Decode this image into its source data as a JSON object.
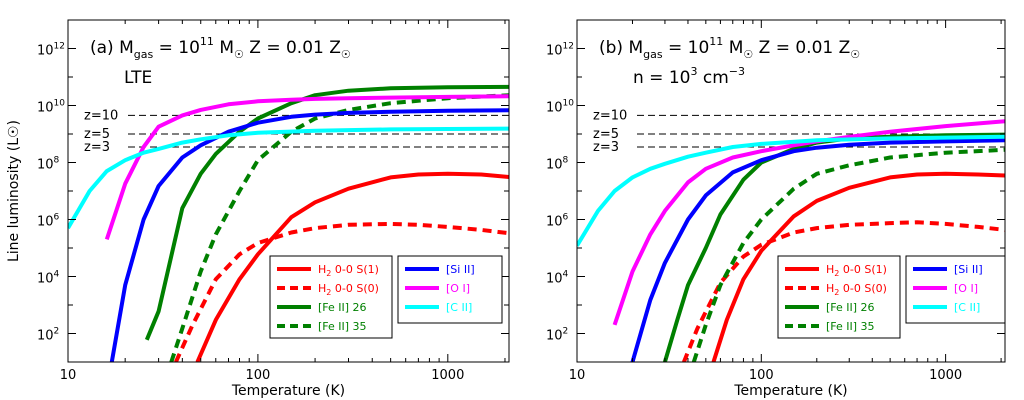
{
  "chart_data": [
    {
      "type": "line",
      "panel_label": "(a)",
      "title_lines": [
        {
          "pre": "(a) M",
          "sub": "gas",
          "mid": " = 10",
          "sup": "11",
          "post": " M",
          "sym": "☉",
          "z": "  Z = 0.01 Z",
          "zsym": "☉"
        },
        {
          "text": "LTE"
        }
      ],
      "xlabel": "Temperature (K)",
      "ylabel": "Line luminosity (L☉)",
      "xscale": "log",
      "yscale": "log",
      "xlim": [
        10,
        2100
      ],
      "ylim": [
        10,
        10000000000000.0
      ],
      "xticks": [
        {
          "v": 10,
          "label": "10"
        },
        {
          "v": 100,
          "label": "100"
        },
        {
          "v": 1000,
          "label": "1000"
        }
      ],
      "yticks": [
        {
          "v": 100,
          "base": "10",
          "exp": "2"
        },
        {
          "v": 10000,
          "base": "10",
          "exp": "4"
        },
        {
          "v": 1000000,
          "base": "10",
          "exp": "6"
        },
        {
          "v": 100000000,
          "base": "10",
          "exp": "8"
        },
        {
          "v": 10000000000,
          "base": "10",
          "exp": "10"
        },
        {
          "v": 1000000000000,
          "base": "10",
          "exp": "12"
        }
      ],
      "hlines": [
        {
          "label": "z=10",
          "y": 4500000000.0
        },
        {
          "label": "z=5",
          "y": 1000000000.0
        },
        {
          "label": "z=3",
          "y": 350000000.0
        }
      ],
      "series": [
        {
          "name": "H2 0-0 S(1)",
          "color": "#ff0000",
          "dash": false,
          "x": [
            48,
            60,
            80,
            100,
            150,
            200,
            300,
            500,
            700,
            1000,
            1500,
            2100
          ],
          "y": [
            10,
            300,
            8000,
            60000,
            1200000.0,
            4000000.0,
            12000000.0,
            30000000.0,
            38000000.0,
            40000000.0,
            38000000.0,
            31000000.0
          ]
        },
        {
          "name": "H2 0-0 S(0)",
          "color": "#ff0000",
          "dash": true,
          "x": [
            37,
            45,
            60,
            80,
            100,
            150,
            200,
            300,
            500,
            700,
            1000,
            1500,
            2100
          ],
          "y": [
            10,
            180,
            8000,
            60000,
            150000,
            350000,
            500000,
            650000,
            700000,
            650000,
            550000,
            430000,
            330000
          ]
        },
        {
          "name": "[Fe II] 26",
          "color": "#008000",
          "dash": false,
          "x": [
            26,
            30,
            40,
            50,
            60,
            80,
            100,
            150,
            200,
            300,
            500,
            1000,
            2100
          ],
          "y": [
            60,
            600,
            2500000.0,
            40000000.0,
            200000000.0,
            1200000000.0,
            3500000000.0,
            12000000000.0,
            23000000000.0,
            33000000000.0,
            40000000000.0,
            44000000000.0,
            45000000000.0
          ]
        },
        {
          "name": "[Fe II] 35",
          "color": "#008000",
          "dash": true,
          "x": [
            35,
            40,
            50,
            60,
            80,
            100,
            150,
            200,
            300,
            500,
            1000,
            2100
          ],
          "y": [
            10,
            150,
            15000,
            300000,
            10000000.0,
            120000000.0,
            1200000000.0,
            3500000000.0,
            7000000000.0,
            12000000000.0,
            18000000000.0,
            23000000000.0
          ]
        },
        {
          "name": "[Si II]",
          "color": "#0000ff",
          "dash": false,
          "x": [
            17,
            20,
            25,
            30,
            40,
            50,
            70,
            100,
            150,
            200,
            300,
            500,
            1000,
            2100
          ],
          "y": [
            10,
            5000,
            1000000.0,
            15000000.0,
            150000000.0,
            400000000.0,
            1200000000.0,
            2500000000.0,
            4000000000.0,
            4800000000.0,
            5500000000.0,
            6000000000.0,
            6500000000.0,
            6800000000.0
          ]
        },
        {
          "name": "[O I]",
          "color": "#ff00ff",
          "dash": false,
          "x": [
            16,
            20,
            25,
            30,
            40,
            50,
            70,
            100,
            150,
            200,
            300,
            500,
            1000,
            2100
          ],
          "y": [
            200000,
            18000000.0,
            350000000.0,
            1800000000.0,
            4500000000.0,
            7000000000.0,
            11000000000.0,
            14000000000.0,
            16000000000.0,
            17000000000.0,
            18000000000.0,
            19000000000.0,
            20000000000.0,
            21000000000.0
          ]
        },
        {
          "name": "[C II]",
          "color": "#00ffff",
          "dash": false,
          "x": [
            10,
            13,
            16,
            20,
            25,
            30,
            40,
            50,
            70,
            100,
            200,
            500,
            1000,
            2100
          ],
          "y": [
            500000,
            10000000.0,
            50000000.0,
            120000000.0,
            220000000.0,
            300000000.0,
            500000000.0,
            650000000.0,
            900000000.0,
            1100000000.0,
            1300000000.0,
            1450000000.0,
            1500000000.0,
            1550000000.0
          ]
        }
      ]
    },
    {
      "type": "line",
      "panel_label": "(b)",
      "title_lines": [
        {
          "pre": "(b) M",
          "sub": "gas",
          "mid": " = 10",
          "sup": "11",
          "post": " M",
          "sym": "☉",
          "z": "  Z = 0.01 Z",
          "zsym": "☉"
        },
        {
          "text": "n = 10",
          "sup": "3",
          "post": " cm",
          "sup2": "−3"
        }
      ],
      "xlabel": "Temperature (K)",
      "xscale": "log",
      "yscale": "log",
      "xlim": [
        10,
        2100
      ],
      "ylim": [
        10,
        10000000000000.0
      ],
      "xticks": [
        {
          "v": 10,
          "label": "10"
        },
        {
          "v": 100,
          "label": "100"
        },
        {
          "v": 1000,
          "label": "1000"
        }
      ],
      "yticks": [
        {
          "v": 100,
          "base": "10",
          "exp": "2"
        },
        {
          "v": 10000,
          "base": "10",
          "exp": "4"
        },
        {
          "v": 1000000,
          "base": "10",
          "exp": "6"
        },
        {
          "v": 100000000,
          "base": "10",
          "exp": "8"
        },
        {
          "v": 10000000000,
          "base": "10",
          "exp": "10"
        },
        {
          "v": 1000000000000,
          "base": "10",
          "exp": "12"
        }
      ],
      "hlines": [
        {
          "label": "z=10",
          "y": 4500000000.0
        },
        {
          "label": "z=5",
          "y": 1000000000.0
        },
        {
          "label": "z=3",
          "y": 350000000.0
        }
      ],
      "series": [
        {
          "name": "H2 0-0 S(1)",
          "color": "#ff0000",
          "dash": false,
          "x": [
            55,
            65,
            80,
            100,
            150,
            200,
            300,
            500,
            700,
            1000,
            1500,
            2100
          ],
          "y": [
            10,
            300,
            8000,
            80000,
            1300000.0,
            4500000.0,
            13000000.0,
            30000000.0,
            38000000.0,
            40000000.0,
            38000000.0,
            35000000.0
          ]
        },
        {
          "name": "H2 0-0 S(0)",
          "color": "#ff0000",
          "dash": true,
          "x": [
            38,
            45,
            60,
            80,
            100,
            150,
            200,
            300,
            500,
            700,
            1000,
            1500,
            2100
          ],
          "y": [
            10,
            150,
            6000,
            50000,
            130000,
            350000,
            500000,
            650000,
            750000,
            800000,
            700000,
            550000,
            430000
          ]
        },
        {
          "name": "[Fe II] 26",
          "color": "#008000",
          "dash": false,
          "x": [
            30,
            35,
            40,
            50,
            60,
            80,
            100,
            150,
            200,
            300,
            500,
            1000,
            2100
          ],
          "y": [
            10,
            300,
            5000,
            100000,
            1500000.0,
            25000000.0,
            100000000.0,
            300000000.0,
            500000000.0,
            700000000.0,
            800000000.0,
            900000000.0,
            950000000.0
          ]
        },
        {
          "name": "[Fe II] 35",
          "color": "#008000",
          "dash": true,
          "x": [
            43,
            50,
            60,
            80,
            100,
            150,
            200,
            300,
            500,
            1000,
            2100
          ],
          "y": [
            10,
            200,
            5000,
            150000,
            1000000.0,
            12000000.0,
            40000000.0,
            80000000.0,
            150000000.0,
            220000000.0,
            280000000.0
          ]
        },
        {
          "name": "[Si II]",
          "color": "#0000ff",
          "dash": false,
          "x": [
            20,
            25,
            30,
            40,
            50,
            70,
            100,
            150,
            200,
            300,
            500,
            1000,
            2100
          ],
          "y": [
            10,
            1500,
            30000,
            1000000.0,
            7000000.0,
            45000000.0,
            120000000.0,
            250000000.0,
            330000000.0,
            420000000.0,
            500000000.0,
            550000000.0,
            600000000.0
          ]
        },
        {
          "name": "[O I]",
          "color": "#ff00ff",
          "dash": false,
          "x": [
            16,
            20,
            25,
            30,
            40,
            50,
            70,
            100,
            150,
            200,
            300,
            500,
            1000,
            2100
          ],
          "y": [
            200,
            15000,
            300000,
            2000000.0,
            20000000.0,
            60000000.0,
            150000000.0,
            250000000.0,
            400000000.0,
            550000000.0,
            800000000.0,
            1200000000.0,
            1900000000.0,
            2800000000.0
          ]
        },
        {
          "name": "[C II]",
          "color": "#00ffff",
          "dash": false,
          "x": [
            10,
            13,
            16,
            20,
            25,
            30,
            40,
            50,
            70,
            100,
            200,
            500,
            1000,
            2100
          ],
          "y": [
            120000,
            2000000.0,
            10000000.0,
            30000000.0,
            60000000.0,
            90000000.0,
            160000000.0,
            220000000.0,
            350000000.0,
            450000000.0,
            600000000.0,
            700000000.0,
            750000000.0,
            800000000.0
          ]
        }
      ]
    }
  ]
}
